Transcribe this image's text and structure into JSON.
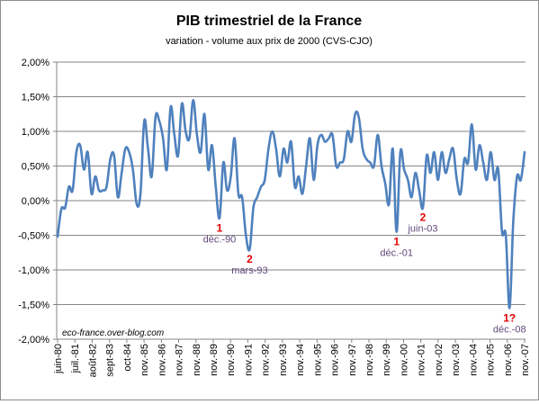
{
  "chart_data": {
    "type": "line",
    "title": "PIB trimestriel  de la France",
    "subtitle": "variation - volume aux prix de 2000 (CVS-CJO)",
    "watermark": "eco-france.over-blog.com",
    "ylim": [
      -2.0,
      2.0
    ],
    "y_ticks": [
      "2,00%",
      "1,50%",
      "1,00%",
      "0,50%",
      "0,00%",
      "-0,50%",
      "-1,00%",
      "-1,50%",
      "-2,00%"
    ],
    "grid": true,
    "line_color": "#4f81bd",
    "x_tick_labels": [
      "juin-80",
      "juil.-81",
      "août-82",
      "sept-83",
      "oct-84",
      "nov.-85",
      "nov.-86",
      "nov.-87",
      "nov.-88",
      "nov.-89",
      "nov.-90",
      "nov.-91",
      "nov.-92",
      "nov.-93",
      "nov.-94",
      "nov.-95",
      "nov.-96",
      "nov.-97",
      "nov.-98",
      "nov.-99",
      "nov.-00",
      "nov.-01",
      "nov.-02",
      "nov.-03",
      "nov.-04",
      "nov.-05",
      "nov.-06",
      "nov.-07"
    ],
    "values": [
      -0.52,
      -0.12,
      -0.1,
      0.2,
      0.15,
      0.7,
      0.8,
      0.45,
      0.7,
      0.1,
      0.35,
      0.15,
      0.15,
      0.2,
      0.6,
      0.65,
      0.05,
      0.4,
      0.75,
      0.7,
      0.45,
      -0.05,
      0.1,
      1.15,
      0.75,
      0.35,
      1.2,
      1.15,
      0.9,
      0.45,
      1.35,
      0.95,
      0.65,
      1.4,
      1.0,
      0.9,
      1.45,
      0.95,
      0.7,
      1.25,
      0.45,
      0.8,
      0.2,
      -0.25,
      0.55,
      0.15,
      0.35,
      0.9,
      0.1,
      0.05,
      -0.5,
      -0.7,
      -0.1,
      0.05,
      0.2,
      0.3,
      0.75,
      1.0,
      0.75,
      0.35,
      0.75,
      0.55,
      0.85,
      0.2,
      0.35,
      0.1,
      0.5,
      0.9,
      0.3,
      0.8,
      0.95,
      0.85,
      0.9,
      0.95,
      0.5,
      0.55,
      0.6,
      1.0,
      0.85,
      1.25,
      1.2,
      0.75,
      0.6,
      0.55,
      0.5,
      0.95,
      0.5,
      0.25,
      -0.05,
      0.75,
      -0.45,
      0.7,
      0.45,
      0.3,
      0.05,
      0.4,
      0.15,
      -0.1,
      0.65,
      0.4,
      0.7,
      0.3,
      0.7,
      0.4,
      0.6,
      0.75,
      0.3,
      0.1,
      0.6,
      0.55,
      1.1,
      0.45,
      0.8,
      0.55,
      0.3,
      0.7,
      0.3,
      0.45,
      -0.45,
      -0.5,
      -1.55,
      -0.3,
      0.35,
      0.3,
      0.7
    ],
    "annotations": [
      {
        "number": "1",
        "label": "déc.-90",
        "index": 43
      },
      {
        "number": "2",
        "label": "mars-93",
        "index": 51
      },
      {
        "number": "1",
        "label": "déc.-01",
        "index": 90
      },
      {
        "number": "2",
        "label": "juin-03",
        "index": 97
      },
      {
        "number": "1?",
        "label": "déc.-08",
        "index": 120
      }
    ],
    "annotation_number_color": "#e00000",
    "annotation_label_color": "#60497a"
  }
}
